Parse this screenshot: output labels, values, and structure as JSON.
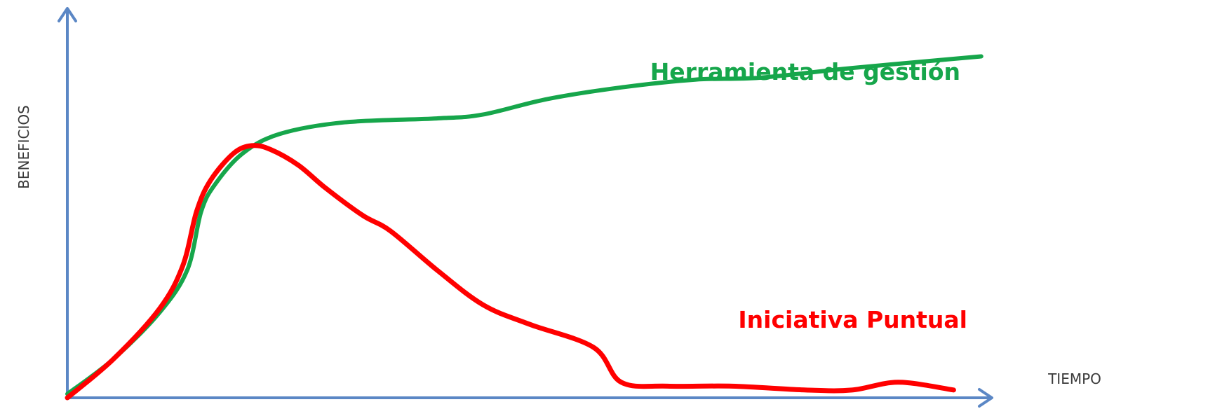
{
  "chart_data": {
    "type": "line",
    "ylabel": "BENEFICIOS",
    "xlabel": "TIEMPO",
    "axis_color": "#5b87c5",
    "xlim": [
      0,
      100
    ],
    "ylim": [
      0,
      100
    ],
    "grid": false,
    "series": [
      {
        "name": "Herramienta de gestión",
        "color": "#16a64b",
        "x": [
          0,
          5,
          10,
          13,
          14.5,
          16,
          19,
          23,
          30,
          40,
          45,
          52,
          60,
          68,
          75,
          85,
          99
        ],
        "y": [
          1,
          10,
          22,
          33,
          48,
          55,
          63,
          68,
          71,
          72,
          73,
          77,
          80,
          82,
          82.5,
          85,
          88
        ]
      },
      {
        "name": "Iniciativa Puntual",
        "color": "#ff0000",
        "x": [
          0,
          5,
          10,
          12.5,
          14,
          15.5,
          18,
          20,
          22,
          25,
          28,
          32,
          35,
          40,
          45,
          50,
          57,
          60,
          65,
          72,
          80,
          85,
          90,
          96
        ],
        "y": [
          0,
          10,
          23,
          34,
          48,
          56,
          63,
          65,
          64,
          60,
          54,
          47,
          43,
          33,
          24,
          19,
          13,
          4,
          3,
          3,
          2,
          2,
          4,
          2
        ]
      }
    ]
  }
}
